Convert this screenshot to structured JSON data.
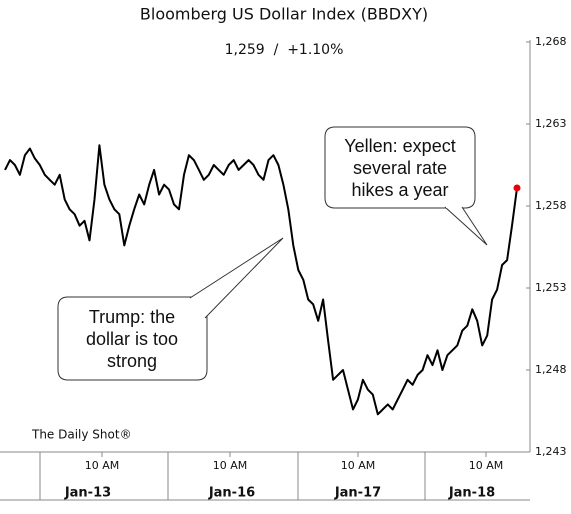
{
  "chart_data": {
    "type": "line",
    "title": "Bloomberg US Dollar Index (BBDXY)",
    "subtitle": "1,259  /  +1.10%",
    "source": "The Daily Shot®",
    "x_tick_labels": [
      "10 AM",
      "10 AM",
      "10 AM",
      "10 AM"
    ],
    "day_labels": [
      "Jan-13",
      "Jan-16",
      "Jan-17",
      "Jan-18"
    ],
    "annotations": [
      {
        "lines": [
          "Trump: the",
          "dollar is too",
          "strong"
        ]
      },
      {
        "lines": [
          "Yellen: expect",
          "several rate",
          "hikes a year"
        ]
      }
    ],
    "series": [
      {
        "name": "BBDXY",
        "color": "#000000",
        "marker_color": "#e8000b",
        "values": [
          1260.2,
          1260.8,
          1260.5,
          1259.9,
          1261.1,
          1261.5,
          1260.9,
          1260.5,
          1259.9,
          1259.6,
          1259.3,
          1259.9,
          1258.4,
          1257.8,
          1257.5,
          1256.8,
          1257.1,
          1255.9,
          1258.4,
          1261.7,
          1259.3,
          1258.4,
          1257.8,
          1257.5,
          1255.6,
          1256.8,
          1257.8,
          1258.7,
          1258.1,
          1259.3,
          1260.2,
          1258.7,
          1259.3,
          1259.0,
          1258.1,
          1257.8,
          1259.9,
          1261.1,
          1260.8,
          1260.2,
          1259.6,
          1259.9,
          1260.5,
          1260.2,
          1259.9,
          1260.5,
          1260.8,
          1260.2,
          1260.5,
          1260.8,
          1260.5,
          1259.9,
          1259.6,
          1260.8,
          1261.1,
          1260.5,
          1259.3,
          1257.8,
          1255.6,
          1254.1,
          1253.5,
          1252.3,
          1252.0,
          1251.0,
          1252.3,
          1249.8,
          1247.4,
          1247.7,
          1248.0,
          1246.8,
          1245.6,
          1246.2,
          1247.4,
          1246.8,
          1246.5,
          1245.3,
          1245.6,
          1245.9,
          1245.6,
          1246.2,
          1246.8,
          1247.4,
          1247.1,
          1247.7,
          1248.0,
          1248.9,
          1248.3,
          1249.2,
          1248.0,
          1248.9,
          1249.2,
          1249.5,
          1250.4,
          1250.7,
          1251.7,
          1251.0,
          1249.5,
          1250.1,
          1252.3,
          1252.9,
          1254.4,
          1254.7,
          1256.8,
          1259.1
        ]
      }
    ],
    "ylim": [
      1243,
      1268
    ],
    "yticks": [
      {
        "value": 1243,
        "label": "1,243"
      },
      {
        "value": 1248,
        "label": "1,248"
      },
      {
        "value": 1253,
        "label": "1,253"
      },
      {
        "value": 1258,
        "label": "1,258"
      },
      {
        "value": 1263,
        "label": "1,263"
      },
      {
        "value": 1268,
        "label": "1,268"
      }
    ],
    "grid": false
  }
}
